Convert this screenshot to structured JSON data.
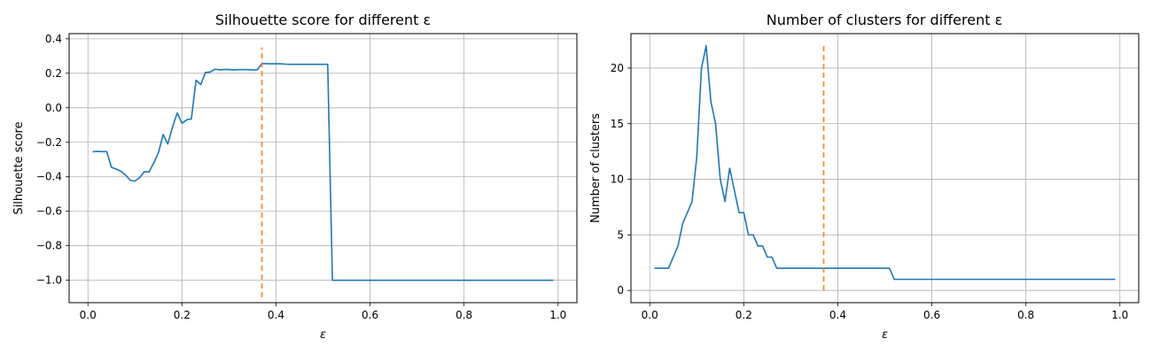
{
  "chart_data": [
    {
      "type": "line",
      "title": "Silhouette score for different ε",
      "xlabel": "ε",
      "ylabel": "Silhouette score",
      "xlim": [
        -0.04,
        1.04
      ],
      "ylim": [
        -1.13,
        0.43
      ],
      "xticks": [
        0.0,
        0.2,
        0.4,
        0.6,
        0.8,
        1.0
      ],
      "xtick_labels": [
        "0.0",
        "0.2",
        "0.4",
        "0.6",
        "0.8",
        "1.0"
      ],
      "yticks": [
        0.4,
        0.2,
        0.0,
        -0.2,
        -0.4,
        -0.6,
        -0.8,
        -1.0
      ],
      "ytick_labels": [
        "0.4",
        "0.2",
        "0.0",
        "−0.2",
        "−0.4",
        "−0.6",
        "−0.8",
        "−1.0"
      ],
      "grid": true,
      "series": [
        {
          "color": "#1f77b4",
          "x": [
            0.01,
            0.02,
            0.03,
            0.04,
            0.05,
            0.06,
            0.07,
            0.08,
            0.09,
            0.1,
            0.11,
            0.12,
            0.13,
            0.14,
            0.15,
            0.16,
            0.17,
            0.18,
            0.19,
            0.2,
            0.21,
            0.22,
            0.23,
            0.24,
            0.25,
            0.26,
            0.27,
            0.28,
            0.29,
            0.3,
            0.31,
            0.32,
            0.33,
            0.34,
            0.35,
            0.36,
            0.37,
            0.38,
            0.39,
            0.4,
            0.41,
            0.42,
            0.43,
            0.44,
            0.45,
            0.46,
            0.47,
            0.48,
            0.49,
            0.5,
            0.51,
            0.52,
            0.53,
            0.55,
            0.6,
            0.65,
            0.7,
            0.75,
            0.8,
            0.85,
            0.9,
            0.95,
            0.99
          ],
          "y": [
            -0.255,
            -0.253,
            -0.254,
            -0.254,
            -0.345,
            -0.355,
            -0.368,
            -0.39,
            -0.42,
            -0.425,
            -0.405,
            -0.37,
            -0.372,
            -0.32,
            -0.26,
            -0.155,
            -0.21,
            -0.11,
            -0.03,
            -0.09,
            -0.07,
            -0.065,
            0.16,
            0.135,
            0.205,
            0.207,
            0.224,
            0.22,
            0.222,
            0.222,
            0.22,
            0.221,
            0.221,
            0.221,
            0.22,
            0.22,
            0.256,
            0.256,
            0.255,
            0.255,
            0.255,
            0.253,
            0.252,
            0.252,
            0.252,
            0.252,
            0.252,
            0.252,
            0.252,
            0.252,
            0.252,
            -1.0,
            -1.0,
            -1.0,
            -1.0,
            -1.0,
            -1.0,
            -1.0,
            -1.0,
            -1.0,
            -1.0,
            -1.0,
            -1.0
          ]
        }
      ],
      "vline": {
        "x": 0.37,
        "y0": -1.1,
        "y1": 0.35,
        "color": "#ff7f0e",
        "style": "dashed"
      }
    },
    {
      "type": "line",
      "title": "Number of clusters for different ε",
      "xlabel": "ε",
      "ylabel": "Number of clusters",
      "xlim": [
        -0.04,
        1.04
      ],
      "ylim": [
        -1.1,
        23.1
      ],
      "xticks": [
        0.0,
        0.2,
        0.4,
        0.6,
        0.8,
        1.0
      ],
      "xtick_labels": [
        "0.0",
        "0.2",
        "0.4",
        "0.6",
        "0.8",
        "1.0"
      ],
      "yticks": [
        20,
        15,
        10,
        5,
        0
      ],
      "ytick_labels": [
        "20",
        "15",
        "10",
        "5",
        "0"
      ],
      "grid": true,
      "series": [
        {
          "color": "#1f77b4",
          "x": [
            0.01,
            0.02,
            0.03,
            0.04,
            0.05,
            0.06,
            0.07,
            0.08,
            0.09,
            0.1,
            0.11,
            0.12,
            0.13,
            0.14,
            0.15,
            0.16,
            0.17,
            0.18,
            0.19,
            0.2,
            0.21,
            0.22,
            0.23,
            0.24,
            0.25,
            0.26,
            0.27,
            0.28,
            0.3,
            0.35,
            0.4,
            0.45,
            0.5,
            0.51,
            0.52,
            0.55,
            0.6,
            0.7,
            0.8,
            0.9,
            0.99
          ],
          "y": [
            2,
            2,
            2,
            2,
            3,
            4,
            6,
            7,
            8,
            12,
            20,
            22,
            17,
            15,
            10,
            8,
            11,
            9,
            7,
            7,
            5,
            5,
            4,
            4,
            3,
            3,
            2,
            2,
            2,
            2,
            2,
            2,
            2,
            2,
            1,
            1,
            1,
            1,
            1,
            1,
            1
          ]
        }
      ],
      "vline": {
        "x": 0.37,
        "y0": 0,
        "y1": 22,
        "color": "#ff7f0e",
        "style": "dashed"
      }
    }
  ]
}
